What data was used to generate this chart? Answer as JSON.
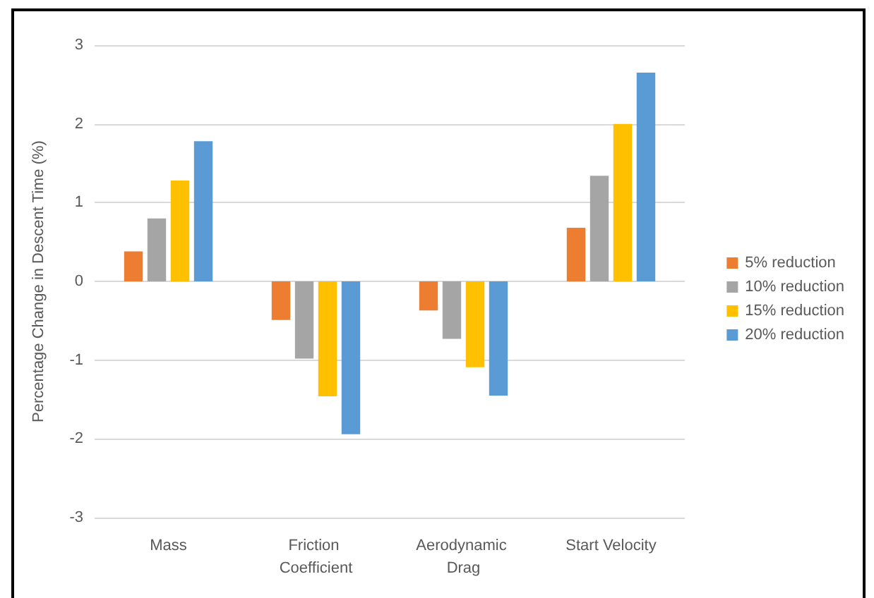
{
  "chart_data": {
    "type": "bar",
    "ylabel": "Percentage Change in Descent Time (%)",
    "categories": [
      "Mass",
      "Friction Coefficient",
      "Aerodynamic Drag",
      "Start Velocity"
    ],
    "series": [
      {
        "name": "5% reduction",
        "color": "#ed7d31",
        "values": [
          0.38,
          -0.49,
          -0.37,
          0.68
        ]
      },
      {
        "name": "10% reduction",
        "color": "#a5a5a5",
        "values": [
          0.8,
          -0.98,
          -0.73,
          1.34
        ]
      },
      {
        "name": "15% reduction",
        "color": "#ffc000",
        "values": [
          1.28,
          -1.46,
          -1.09,
          2.0
        ]
      },
      {
        "name": "20% reduction",
        "color": "#5b9bd5",
        "values": [
          1.78,
          -1.94,
          -1.45,
          2.65
        ]
      }
    ],
    "ylim": [
      -3,
      3
    ],
    "yticks": [
      -3,
      -2,
      -1,
      0,
      1,
      2,
      3
    ],
    "grid": "y",
    "legend": "right"
  }
}
